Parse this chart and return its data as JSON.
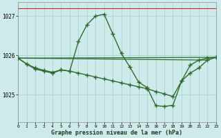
{
  "title": "Graphe pression niveau de la mer (hPa)",
  "bg_color": "#ceeaea",
  "grid_color": "#a8d4d4",
  "line_color": "#2d6b2d",
  "marker_color": "#2d6b2d",
  "ylim": [
    1024.3,
    1027.35
  ],
  "yticks": [
    1025,
    1026,
    1027
  ],
  "xlim": [
    0,
    23
  ],
  "xticks": [
    0,
    1,
    2,
    3,
    4,
    5,
    6,
    7,
    8,
    9,
    10,
    11,
    12,
    13,
    14,
    15,
    16,
    17,
    18,
    19,
    20,
    21,
    22,
    23
  ],
  "red_line_y": 1027.2,
  "curve1_x": [
    0,
    1,
    2,
    3,
    4,
    5,
    6,
    7,
    8,
    9,
    10,
    11,
    12,
    13,
    14,
    15,
    16,
    17,
    18,
    19,
    20,
    21,
    22,
    23
  ],
  "curve1_y": [
    1025.93,
    1025.78,
    1025.68,
    1025.62,
    1025.57,
    1025.63,
    1025.6,
    1026.35,
    1026.78,
    1027.0,
    1027.05,
    1026.55,
    1026.05,
    1025.7,
    1025.32,
    1025.18,
    1024.72,
    1024.7,
    1024.73,
    1025.35,
    1025.75,
    1025.88,
    1025.93,
    1025.95
  ],
  "curve2_x": [
    0,
    1,
    2,
    3,
    4,
    5,
    6,
    7,
    8,
    9,
    10,
    11,
    12,
    13,
    14,
    15,
    16,
    17,
    18,
    19,
    20,
    21,
    22,
    23
  ],
  "curve2_y": [
    1025.93,
    1025.78,
    1025.65,
    1025.6,
    1025.55,
    1025.63,
    1025.6,
    1025.55,
    1025.5,
    1025.45,
    1025.4,
    1025.35,
    1025.3,
    1025.25,
    1025.2,
    1025.15,
    1025.08,
    1025.02,
    1024.95,
    1025.35,
    1025.55,
    1025.68,
    1025.88,
    1025.95
  ],
  "line3_x": [
    0,
    23
  ],
  "line3_y": [
    1025.93,
    1025.95
  ],
  "line4_x": [
    0,
    22
  ],
  "line4_y": [
    1025.93,
    1025.88
  ]
}
